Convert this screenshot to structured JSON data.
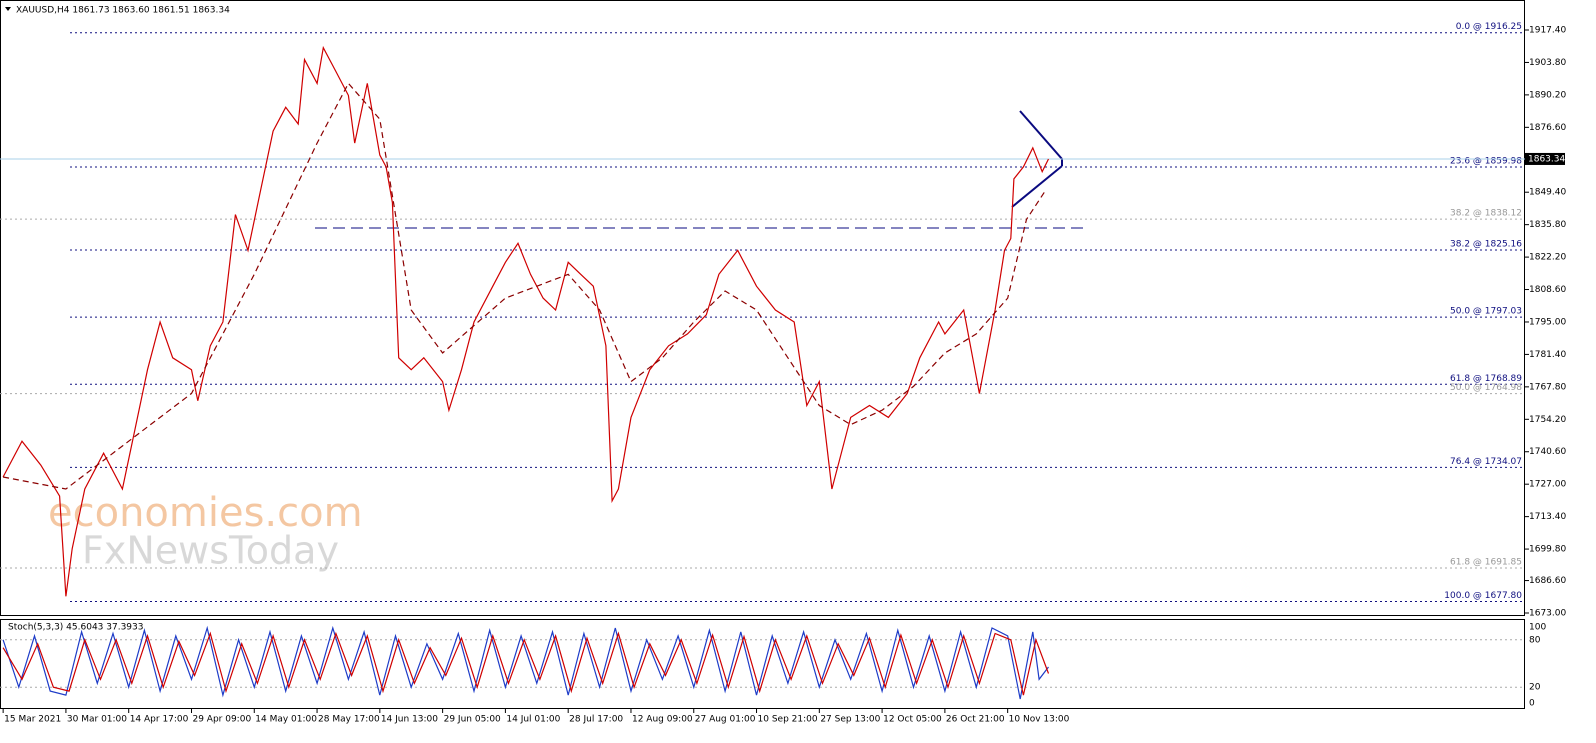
{
  "header": "XAUUSD,H4  1861.73 1863.60 1861.51 1863.34",
  "watermark": [
    "economies.com",
    "FxNewsToday"
  ],
  "chart_data": {
    "type": "line",
    "xlim": [
      -0.05,
      24.24
    ],
    "xticks": [
      {
        "value": 0,
        "label": "15 Mar 2021"
      },
      {
        "value": 1,
        "label": "30 Mar 01:00"
      },
      {
        "value": 2,
        "label": "14 Apr 17:00"
      },
      {
        "value": 3,
        "label": "29 Apr 09:00"
      },
      {
        "value": 4,
        "label": "14 May 01:00"
      },
      {
        "value": 5,
        "label": "28 May 17:00"
      },
      {
        "value": 6,
        "label": "14 Jun 13:00"
      },
      {
        "value": 7,
        "label": "29 Jun 05:00"
      },
      {
        "value": 8,
        "label": "14 Jul 01:00"
      },
      {
        "value": 9,
        "label": "28 Jul 17:00"
      },
      {
        "value": 10,
        "label": "12 Aug 09:00"
      },
      {
        "value": 11,
        "label": "27 Aug 01:00"
      },
      {
        "value": 12,
        "label": "10 Sep 21:00"
      },
      {
        "value": 13,
        "label": "27 Sep 13:00"
      },
      {
        "value": 14,
        "label": "12 Oct 05:00"
      },
      {
        "value": 15,
        "label": "26 Oct 21:00"
      },
      {
        "value": 16,
        "label": "10 Nov 13:00"
      }
    ],
    "ylim": [
      1673.0,
      1917.4
    ],
    "yticks": [
      {
        "value": 1917.4,
        "label": "1917.40"
      },
      {
        "value": 1903.8,
        "label": "1903.80"
      },
      {
        "value": 1890.2,
        "label": "1890.20"
      },
      {
        "value": 1876.6,
        "label": "1876.60"
      },
      {
        "value": 1849.4,
        "label": "1849.40"
      },
      {
        "value": 1835.8,
        "label": "1835.80"
      },
      {
        "value": 1822.2,
        "label": "1822.20"
      },
      {
        "value": 1808.6,
        "label": "1808.60"
      },
      {
        "value": 1795,
        "label": "1795.00"
      },
      {
        "value": 1781.4,
        "label": "1781.40"
      },
      {
        "value": 1767.8,
        "label": "1767.80"
      },
      {
        "value": 1754.2,
        "label": "1754.20"
      },
      {
        "value": 1740.6,
        "label": "1740.60"
      },
      {
        "value": 1727,
        "label": "1727.00"
      },
      {
        "value": 1713.4,
        "label": "1713.40"
      },
      {
        "value": 1699.8,
        "label": "1699.80"
      },
      {
        "value": 1686.6,
        "label": "1686.60"
      },
      {
        "value": 1673,
        "label": "1673.00"
      }
    ],
    "current_price": 1863.34,
    "fib_levels": [
      {
        "value": 1916.25,
        "label": "0.0 @ 1916.25"
      },
      {
        "value": 1859.98,
        "label": "23.6 @ 1859.98"
      },
      {
        "value": 1825.16,
        "label": "38.2 @ 1825.16"
      },
      {
        "value": 1797.03,
        "label": "50.0 @ 1797.03"
      },
      {
        "value": 1768.89,
        "label": "61.8 @ 1768.89"
      },
      {
        "value": 1734.07,
        "label": "76.4 @ 1734.07"
      },
      {
        "value": 1677.8,
        "label": "100.0 @ 1677.80"
      }
    ],
    "fib_levels_secondary": [
      {
        "value": 1838.12,
        "label": "38.2 @ 1838.12"
      },
      {
        "value": 1764.98,
        "label": "50.0 @ 1764.98"
      },
      {
        "value": 1691.85,
        "label": "61.8 @ 1691.85"
      }
    ],
    "series": [
      {
        "color": "#d00000",
        "x": [
          0,
          0.3,
          0.6,
          0.9,
          1.0,
          1.1,
          1.3,
          1.6,
          1.9,
          2.1,
          2.3,
          2.5,
          2.7,
          3.0,
          3.1,
          3.3,
          3.5,
          3.7,
          3.9,
          4.1,
          4.3,
          4.5,
          4.7,
          4.8,
          5.0,
          5.1,
          5.3,
          5.5,
          5.6,
          5.8,
          6.0,
          6.1,
          6.2,
          6.3,
          6.5,
          6.7,
          7.0,
          7.1,
          7.3,
          7.5,
          7.8,
          8.0,
          8.2,
          8.4,
          8.6,
          8.8,
          9.0,
          9.2,
          9.4,
          9.6,
          9.7,
          9.8,
          10.0,
          10.3,
          10.6,
          10.9,
          11.2,
          11.4,
          11.7,
          12.0,
          12.3,
          12.6,
          12.8,
          13.0,
          13.2,
          13.5,
          13.8,
          14.1,
          14.4,
          14.6,
          14.9,
          15.0,
          15.3,
          15.55,
          15.8,
          15.95,
          16.05,
          16.1,
          16.25,
          16.4,
          16.55,
          16.65
        ],
        "values": [
          1730,
          1745,
          1735,
          1722,
          1680,
          1700,
          1725,
          1740,
          1725,
          1750,
          1775,
          1795,
          1780,
          1775,
          1762,
          1785,
          1795,
          1840,
          1825,
          1850,
          1875,
          1885,
          1878,
          1905,
          1895,
          1910,
          1900,
          1890,
          1870,
          1895,
          1865,
          1860,
          1845,
          1780,
          1775,
          1780,
          1770,
          1758,
          1775,
          1795,
          1810,
          1820,
          1828,
          1815,
          1805,
          1800,
          1820,
          1815,
          1810,
          1785,
          1720,
          1725,
          1755,
          1775,
          1785,
          1790,
          1798,
          1815,
          1825,
          1810,
          1800,
          1795,
          1760,
          1770,
          1725,
          1755,
          1760,
          1755,
          1765,
          1780,
          1795,
          1790,
          1800,
          1765,
          1800,
          1825,
          1830,
          1855,
          1860,
          1868,
          1858,
          1863.34
        ]
      },
      {
        "color": "#8b0000",
        "dashed": true,
        "x": [
          0,
          1,
          2,
          3,
          4,
          5,
          5.5,
          6,
          6.5,
          7,
          8,
          9,
          9.5,
          10,
          10.5,
          11,
          11.5,
          12,
          12.5,
          13,
          13.5,
          14,
          14.5,
          15,
          15.5,
          16,
          16.3,
          16.6
        ],
        "values": [
          1730,
          1725,
          1745,
          1765,
          1815,
          1870,
          1895,
          1880,
          1800,
          1782,
          1805,
          1815,
          1800,
          1770,
          1780,
          1795,
          1808,
          1800,
          1780,
          1760,
          1752,
          1758,
          1768,
          1782,
          1790,
          1805,
          1838,
          1850
        ]
      }
    ],
    "indicator": {
      "label": "Stoch(5,3,3) 45.6043 37.3933",
      "ylim": [
        0,
        100
      ],
      "yticks": [
        100,
        80,
        20,
        0
      ],
      "levels": [
        80,
        20
      ],
      "series": [
        {
          "color": "#1e3cc8",
          "x": [
            0,
            0.25,
            0.5,
            0.75,
            1,
            1.25,
            1.5,
            1.75,
            2,
            2.25,
            2.5,
            2.75,
            3,
            3.25,
            3.5,
            3.75,
            4,
            4.25,
            4.5,
            4.75,
            5,
            5.25,
            5.5,
            5.75,
            6,
            6.25,
            6.5,
            6.75,
            7,
            7.25,
            7.5,
            7.75,
            8,
            8.25,
            8.5,
            8.75,
            9,
            9.25,
            9.5,
            9.75,
            10,
            10.25,
            10.5,
            10.75,
            11,
            11.25,
            11.5,
            11.75,
            12,
            12.25,
            12.5,
            12.75,
            13,
            13.25,
            13.5,
            13.75,
            14,
            14.25,
            14.5,
            14.75,
            15,
            15.25,
            15.5,
            15.75,
            16,
            16.2,
            16.4,
            16.5,
            16.65
          ],
          "values": [
            80,
            20,
            85,
            15,
            10,
            90,
            25,
            88,
            20,
            92,
            15,
            85,
            30,
            95,
            10,
            80,
            20,
            90,
            15,
            85,
            25,
            95,
            30,
            90,
            10,
            85,
            20,
            75,
            30,
            88,
            15,
            92,
            20,
            85,
            25,
            90,
            10,
            88,
            20,
            95,
            15,
            80,
            30,
            85,
            20,
            92,
            15,
            90,
            10,
            85,
            25,
            90,
            20,
            80,
            30,
            88,
            15,
            92,
            20,
            85,
            15,
            90,
            20,
            95,
            85,
            5,
            90,
            30,
            45.6
          ]
        },
        {
          "color": "#d00000",
          "x": [
            0,
            0.3,
            0.55,
            0.8,
            1.05,
            1.3,
            1.55,
            1.8,
            2.05,
            2.3,
            2.55,
            2.8,
            3.05,
            3.3,
            3.55,
            3.8,
            4.05,
            4.3,
            4.55,
            4.8,
            5.05,
            5.3,
            5.55,
            5.8,
            6.05,
            6.3,
            6.55,
            6.8,
            7.05,
            7.3,
            7.55,
            7.8,
            8.05,
            8.3,
            8.55,
            8.8,
            9.05,
            9.3,
            9.55,
            9.8,
            10.05,
            10.3,
            10.55,
            10.8,
            11.05,
            11.3,
            11.55,
            11.8,
            12.05,
            12.3,
            12.55,
            12.8,
            13.05,
            13.3,
            13.55,
            13.8,
            14.05,
            14.3,
            14.55,
            14.8,
            15.05,
            15.3,
            15.55,
            15.8,
            16.05,
            16.25,
            16.45,
            16.65
          ],
          "values": [
            70,
            30,
            75,
            20,
            15,
            80,
            30,
            80,
            25,
            85,
            20,
            78,
            35,
            88,
            15,
            75,
            25,
            85,
            20,
            80,
            30,
            88,
            35,
            85,
            15,
            80,
            25,
            70,
            35,
            82,
            20,
            85,
            25,
            80,
            30,
            85,
            15,
            82,
            25,
            88,
            20,
            75,
            35,
            80,
            25,
            86,
            20,
            84,
            15,
            80,
            30,
            85,
            25,
            75,
            35,
            82,
            20,
            86,
            25,
            80,
            20,
            85,
            25,
            88,
            80,
            10,
            80,
            37.4
          ]
        }
      ]
    }
  }
}
